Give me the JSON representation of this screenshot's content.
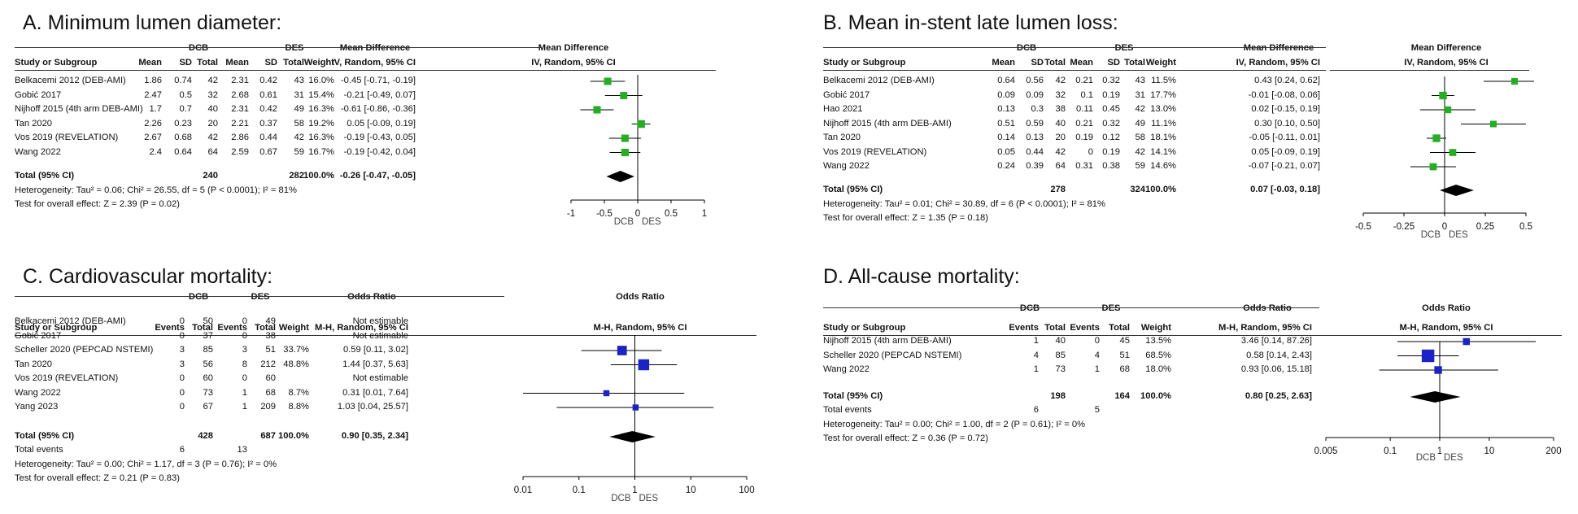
{
  "chart_data": [
    {
      "type": "forest",
      "panel_title": "A. Minimum lumen diameter:",
      "group1": "DCB",
      "group2": "DES",
      "effect_header": "Mean Difference",
      "method": "IV, Random, 95% CI",
      "columns": [
        "Study or Subgroup",
        "Mean",
        "SD",
        "Total",
        "Mean",
        "SD",
        "Total",
        "Weight",
        "IV, Random, 95% CI"
      ],
      "studies": [
        {
          "name": "Belkacemi 2012 (DEB-AMI)",
          "cells": [
            "1.86",
            "0.74",
            "42",
            "2.31",
            "0.42",
            "43",
            "16.0%",
            "-0.45 [-0.71, -0.19]"
          ],
          "est": -0.45,
          "lo": -0.71,
          "hi": -0.19,
          "weight": 16.0
        },
        {
          "name": "Gobić 2017",
          "cells": [
            "2.47",
            "0.5",
            "32",
            "2.68",
            "0.61",
            "31",
            "15.4%",
            "-0.21 [-0.49, 0.07]"
          ],
          "est": -0.21,
          "lo": -0.49,
          "hi": 0.07,
          "weight": 15.4
        },
        {
          "name": "Nijhoff 2015 (4th arm DEB-AMI)",
          "cells": [
            "1.7",
            "0.7",
            "40",
            "2.31",
            "0.42",
            "49",
            "16.3%",
            "-0.61 [-0.86, -0.36]"
          ],
          "est": -0.61,
          "lo": -0.86,
          "hi": -0.36,
          "weight": 16.3
        },
        {
          "name": "Tan 2020",
          "cells": [
            "2.26",
            "0.23",
            "20",
            "2.21",
            "0.37",
            "58",
            "19.2%",
            "0.05 [-0.09, 0.19]"
          ],
          "est": 0.05,
          "lo": -0.09,
          "hi": 0.19,
          "weight": 19.2
        },
        {
          "name": "Vos 2019 (REVELATION)",
          "cells": [
            "2.67",
            "0.68",
            "42",
            "2.86",
            "0.44",
            "42",
            "16.3%",
            "-0.19 [-0.43, 0.05]"
          ],
          "est": -0.19,
          "lo": -0.43,
          "hi": 0.05,
          "weight": 16.3
        },
        {
          "name": "Wang 2022",
          "cells": [
            "2.4",
            "0.64",
            "64",
            "2.59",
            "0.67",
            "59",
            "16.7%",
            "-0.19 [-0.42, 0.04]"
          ],
          "est": -0.19,
          "lo": -0.42,
          "hi": 0.04,
          "weight": 16.7
        }
      ],
      "total": {
        "label": "Total (95% CI)",
        "n1": "240",
        "n2": "282",
        "weight": "100.0%",
        "ci": "-0.26 [-0.47, -0.05]",
        "est": -0.26,
        "lo": -0.47,
        "hi": -0.05
      },
      "total_events": null,
      "heterogeneity": "Heterogeneity: Tau² = 0.06; Chi² = 26.55, df = 5 (P < 0.0001); I² = 81%",
      "overall_test": "Test for overall effect: Z = 2.39 (P = 0.02)",
      "axis": {
        "scale": "linear",
        "min": -1,
        "max": 1,
        "ticks": [
          "-1",
          "-0.5",
          "0",
          "0.5",
          "1"
        ],
        "tick_values": [
          -1,
          -0.5,
          0,
          0.5,
          1
        ],
        "left_label": "DCB",
        "right_label": "DES"
      },
      "marker_color": "#22b022"
    },
    {
      "type": "forest",
      "panel_title": "B. Mean in-stent late lumen loss:",
      "group1": "DCB",
      "group2": "DES",
      "effect_header": "Mean Difference",
      "method": "IV, Random, 95% CI",
      "columns": [
        "Study or Subgroup",
        "Mean",
        "SD",
        "Total",
        "Mean",
        "SD",
        "Total",
        "Weight",
        "IV, Random, 95% CI"
      ],
      "studies": [
        {
          "name": "Belkacemi 2012 (DEB-AMI)",
          "cells": [
            "0.64",
            "0.56",
            "42",
            "0.21",
            "0.32",
            "43",
            "11.5%",
            "0.43 [0.24, 0.62]"
          ],
          "est": 0.43,
          "lo": 0.24,
          "hi": 0.62,
          "weight": 11.5
        },
        {
          "name": "Gobić 2017",
          "cells": [
            "0.09",
            "0.09",
            "32",
            "0.1",
            "0.19",
            "31",
            "17.7%",
            "-0.01 [-0.08, 0.06]"
          ],
          "est": -0.01,
          "lo": -0.08,
          "hi": 0.06,
          "weight": 17.7
        },
        {
          "name": "Hao 2021",
          "cells": [
            "0.13",
            "0.3",
            "38",
            "0.11",
            "0.45",
            "42",
            "13.0%",
            "0.02 [-0.15, 0.19]"
          ],
          "est": 0.02,
          "lo": -0.15,
          "hi": 0.19,
          "weight": 13.0
        },
        {
          "name": "Nijhoff 2015 (4th arm DEB-AMI)",
          "cells": [
            "0.51",
            "0.59",
            "40",
            "0.21",
            "0.32",
            "49",
            "11.1%",
            "0.30 [0.10, 0.50]"
          ],
          "est": 0.3,
          "lo": 0.1,
          "hi": 0.5,
          "weight": 11.1
        },
        {
          "name": "Tan 2020",
          "cells": [
            "0.14",
            "0.13",
            "20",
            "0.19",
            "0.12",
            "58",
            "18.1%",
            "-0.05 [-0.11, 0.01]"
          ],
          "est": -0.05,
          "lo": -0.11,
          "hi": 0.01,
          "weight": 18.1
        },
        {
          "name": "Vos 2019 (REVELATION)",
          "cells": [
            "0.05",
            "0.44",
            "42",
            "0",
            "0.19",
            "42",
            "14.1%",
            "0.05 [-0.09, 0.19]"
          ],
          "est": 0.05,
          "lo": -0.09,
          "hi": 0.19,
          "weight": 14.1
        },
        {
          "name": "Wang 2022",
          "cells": [
            "0.24",
            "0.39",
            "64",
            "0.31",
            "0.38",
            "59",
            "14.6%",
            "-0.07 [-0.21, 0.07]"
          ],
          "est": -0.07,
          "lo": -0.21,
          "hi": 0.07,
          "weight": 14.6
        }
      ],
      "total": {
        "label": "Total (95% CI)",
        "n1": "278",
        "n2": "324",
        "weight": "100.0%",
        "ci": "0.07 [-0.03, 0.18]",
        "est": 0.07,
        "lo": -0.03,
        "hi": 0.18
      },
      "total_events": null,
      "heterogeneity": "Heterogeneity: Tau² = 0.01; Chi² = 30.89, df = 6 (P < 0.0001); I² = 81%",
      "overall_test": "Test for overall effect: Z = 1.35 (P = 0.18)",
      "axis": {
        "scale": "linear",
        "min": -0.5,
        "max": 0.5,
        "ticks": [
          "-0.5",
          "-0.25",
          "0",
          "0.25",
          "0.5"
        ],
        "tick_values": [
          -0.5,
          -0.25,
          0,
          0.25,
          0.5
        ],
        "left_label": "DCB",
        "right_label": "DES"
      },
      "marker_color": "#22b022"
    },
    {
      "type": "forest",
      "panel_title": "C. Cardiovascular mortality:",
      "group1": "DCB",
      "group2": "DES",
      "effect_header": "Odds Ratio",
      "method": "M-H, Random, 95% CI",
      "columns": [
        "Study or Subgroup",
        "Events",
        "Total",
        "Events",
        "Total",
        "Weight",
        "M-H, Random, 95% CI"
      ],
      "studies": [
        {
          "name": "Belkacemi 2012 (DEB-AMI)",
          "cells": [
            "0",
            "50",
            "0",
            "49",
            "",
            "Not estimable"
          ],
          "est": null,
          "lo": null,
          "hi": null,
          "weight": 0
        },
        {
          "name": "Gobić 2017",
          "cells": [
            "0",
            "37",
            "0",
            "38",
            "",
            "Not estimable"
          ],
          "est": null,
          "lo": null,
          "hi": null,
          "weight": 0
        },
        {
          "name": "Scheller 2020 (PEPCAD NSTEMI)",
          "cells": [
            "3",
            "85",
            "3",
            "51",
            "33.7%",
            "0.59 [0.11, 3.02]"
          ],
          "est": 0.59,
          "lo": 0.11,
          "hi": 3.02,
          "weight": 33.7
        },
        {
          "name": "Tan 2020",
          "cells": [
            "3",
            "56",
            "8",
            "212",
            "48.8%",
            "1.44 [0.37, 5.63]"
          ],
          "est": 1.44,
          "lo": 0.37,
          "hi": 5.63,
          "weight": 48.8
        },
        {
          "name": "Vos 2019 (REVELATION)",
          "cells": [
            "0",
            "60",
            "0",
            "60",
            "",
            "Not estimable"
          ],
          "est": null,
          "lo": null,
          "hi": null,
          "weight": 0
        },
        {
          "name": "Wang 2022",
          "cells": [
            "0",
            "73",
            "1",
            "68",
            "8.7%",
            "0.31 [0.01, 7.64]"
          ],
          "est": 0.31,
          "lo": 0.01,
          "hi": 7.64,
          "weight": 8.7
        },
        {
          "name": "Yang 2023",
          "cells": [
            "0",
            "67",
            "1",
            "209",
            "8.8%",
            "1.03 [0.04, 25.57]"
          ],
          "est": 1.03,
          "lo": 0.04,
          "hi": 25.57,
          "weight": 8.8
        }
      ],
      "total": {
        "label": "Total (95% CI)",
        "n1": "428",
        "n2": "687",
        "weight": "100.0%",
        "ci": "0.90 [0.35, 2.34]",
        "est": 0.9,
        "lo": 0.35,
        "hi": 2.34
      },
      "total_events": {
        "label": "Total events",
        "e1": "6",
        "e2": "13"
      },
      "heterogeneity": "Heterogeneity: Tau² = 0.00; Chi² = 1.17, df = 3 (P = 0.76); I² = 0%",
      "overall_test": "Test for overall effect: Z = 0.21 (P = 0.83)",
      "axis": {
        "scale": "log",
        "min": 0.01,
        "max": 100,
        "ticks": [
          "0.01",
          "0.1",
          "1",
          "10",
          "100"
        ],
        "tick_values": [
          0.01,
          0.1,
          1,
          10,
          100
        ],
        "left_label": "DCB",
        "right_label": "DES"
      },
      "marker_color": "#1a22c8"
    },
    {
      "type": "forest",
      "panel_title": "D. All-cause mortality:",
      "group1": "DCB",
      "group2": "DES",
      "effect_header": "Odds Ratio",
      "method": "M-H, Random, 95% CI",
      "columns": [
        "Study or Subgroup",
        "Events",
        "Total",
        "Events",
        "Total",
        "Weight",
        "M-H, Random, 95% CI"
      ],
      "studies": [
        {
          "name": "Nijhoff 2015 (4th arm DEB-AMI)",
          "cells": [
            "1",
            "40",
            "0",
            "45",
            "13.5%",
            "3.46 [0.14, 87.26]"
          ],
          "est": 3.46,
          "lo": 0.14,
          "hi": 87.26,
          "weight": 13.5
        },
        {
          "name": "Scheller 2020 (PEPCAD NSTEMI)",
          "cells": [
            "4",
            "85",
            "4",
            "51",
            "68.5%",
            "0.58 [0.14, 2.43]"
          ],
          "est": 0.58,
          "lo": 0.14,
          "hi": 2.43,
          "weight": 68.5
        },
        {
          "name": "Wang 2022",
          "cells": [
            "1",
            "73",
            "1",
            "68",
            "18.0%",
            "0.93 [0.06, 15.18]"
          ],
          "est": 0.93,
          "lo": 0.06,
          "hi": 15.18,
          "weight": 18.0
        }
      ],
      "total": {
        "label": "Total (95% CI)",
        "n1": "198",
        "n2": "164",
        "weight": "100.0%",
        "ci": "0.80 [0.25, 2.63]",
        "est": 0.8,
        "lo": 0.25,
        "hi": 2.63
      },
      "total_events": {
        "label": "Total events",
        "e1": "6",
        "e2": "5"
      },
      "heterogeneity": "Heterogeneity: Tau² = 0.00; Chi² = 1.00, df = 2 (P = 0.61); I² = 0%",
      "overall_test": "Test for overall effect: Z = 0.36 (P = 0.72)",
      "axis": {
        "scale": "log",
        "min": 0.005,
        "max": 200,
        "ticks": [
          "0.005",
          "0.1",
          "1",
          "10",
          "200"
        ],
        "tick_values": [
          0.005,
          0.1,
          1,
          10,
          200
        ],
        "left_label": "DCB",
        "right_label": "DES"
      },
      "marker_color": "#1a22c8"
    }
  ]
}
